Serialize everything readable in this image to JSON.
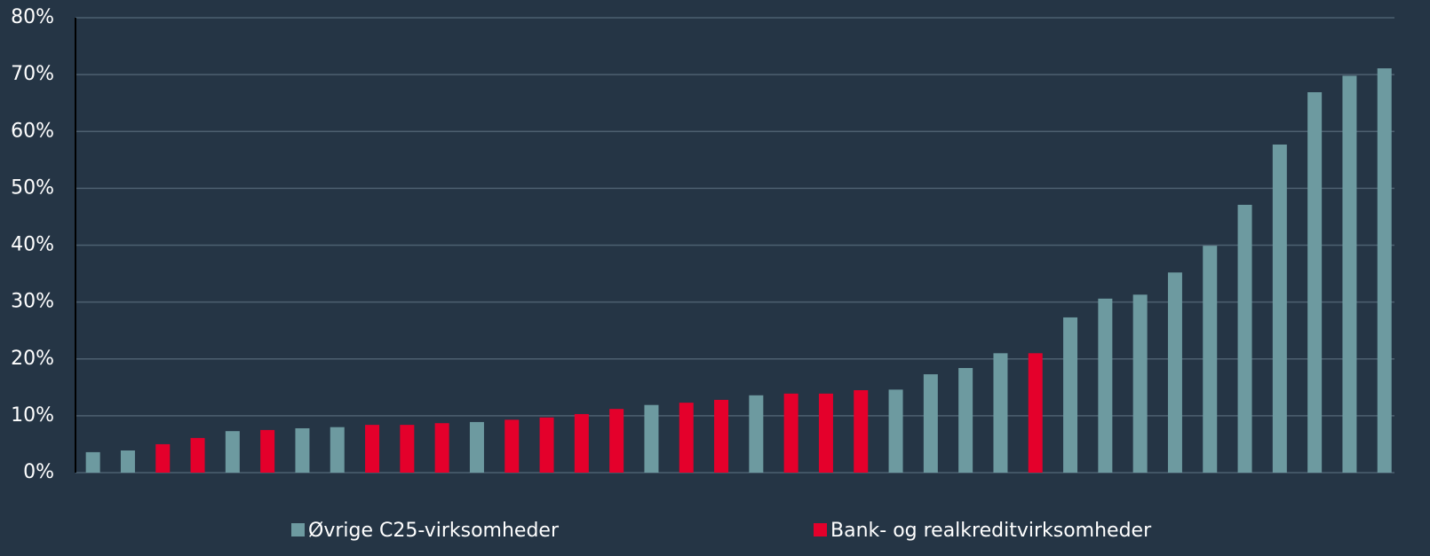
{
  "chart_data": {
    "type": "bar",
    "categories": [
      null,
      null,
      null,
      null,
      null,
      null,
      null,
      null,
      null,
      null,
      null,
      null,
      null,
      null,
      null,
      null,
      null,
      null,
      null,
      null,
      null,
      null,
      null,
      null,
      null,
      null,
      null,
      null,
      null,
      null,
      null,
      null,
      null,
      null,
      null,
      null,
      null,
      null
    ],
    "series": [
      {
        "name": "Øvrige C25-virksomheder",
        "color": "#6d9aa0",
        "values": [
          3.6,
          3.9,
          null,
          null,
          7.3,
          null,
          7.8,
          8.0,
          null,
          null,
          null,
          8.9,
          null,
          null,
          null,
          null,
          11.9,
          null,
          null,
          13.6,
          null,
          null,
          null,
          14.6,
          17.3,
          18.4,
          21.0,
          null,
          27.3,
          30.6,
          31.3,
          35.2,
          39.9,
          47.1,
          57.7,
          66.9,
          69.8,
          71.1
        ]
      },
      {
        "name": "Bank- og realkreditvirksomheder",
        "color": "#e4002b",
        "values": [
          null,
          null,
          5.0,
          6.1,
          null,
          7.5,
          null,
          null,
          8.4,
          8.4,
          8.7,
          null,
          9.3,
          9.7,
          10.3,
          11.2,
          null,
          12.3,
          12.8,
          null,
          13.9,
          13.9,
          14.5,
          null,
          null,
          null,
          null,
          21.0,
          null,
          null,
          null,
          null,
          null,
          null,
          null,
          null,
          null,
          null
        ]
      }
    ],
    "ylim": [
      0,
      80
    ],
    "yticks": [
      {
        "value": 0,
        "label": "0%"
      },
      {
        "value": 10,
        "label": "10%"
      },
      {
        "value": 20,
        "label": "20%"
      },
      {
        "value": 30,
        "label": "30%"
      },
      {
        "value": 40,
        "label": "40%"
      },
      {
        "value": 50,
        "label": "50%"
      },
      {
        "value": 60,
        "label": "60%"
      },
      {
        "value": 70,
        "label": "70%"
      },
      {
        "value": 80,
        "label": "80%"
      }
    ],
    "grid": true,
    "legend": "bottom"
  }
}
